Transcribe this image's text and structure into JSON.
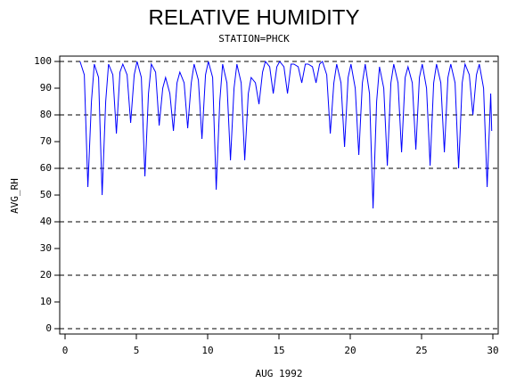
{
  "chart_data": {
    "type": "line",
    "title": "RELATIVE HUMIDITY",
    "subtitle": "STATION=PHCK",
    "xlabel": "AUG 1992",
    "ylabel": "AVG_RH",
    "color": "#0000ff",
    "x": [
      1.05,
      1.35,
      1.6,
      1.85,
      2.05,
      2.35,
      2.6,
      2.85,
      3.05,
      3.35,
      3.6,
      3.85,
      4.05,
      4.35,
      4.6,
      4.85,
      5.05,
      5.35,
      5.6,
      5.85,
      6.05,
      6.35,
      6.6,
      6.85,
      7.05,
      7.35,
      7.6,
      7.85,
      8.05,
      8.35,
      8.6,
      8.85,
      9.05,
      9.35,
      9.6,
      9.85,
      10.05,
      10.35,
      10.6,
      10.85,
      11.05,
      11.35,
      11.6,
      11.85,
      12.05,
      12.35,
      12.6,
      12.85,
      13.05,
      13.35,
      13.6,
      13.85,
      14.05,
      14.35,
      14.6,
      14.85,
      15.05,
      15.35,
      15.6,
      15.85,
      16.05,
      16.35,
      16.6,
      16.85,
      17.05,
      17.35,
      17.6,
      17.85,
      18.05,
      18.35,
      18.6,
      18.85,
      19.05,
      19.35,
      19.6,
      19.85,
      20.05,
      20.35,
      20.6,
      20.85,
      21.05,
      21.35,
      21.6,
      21.85,
      22.05,
      22.35,
      22.6,
      22.85,
      23.05,
      23.35,
      23.6,
      23.85,
      24.05,
      24.35,
      24.6,
      24.85,
      25.05,
      25.35,
      25.6,
      25.85,
      26.05,
      26.35,
      26.6,
      26.85,
      27.05,
      27.35,
      27.6,
      27.85,
      28.05,
      28.35,
      28.6,
      28.85,
      29.05,
      29.35,
      29.6,
      29.85,
      29.92
    ],
    "values": [
      100,
      95,
      53,
      85,
      99,
      94,
      50,
      85,
      99,
      95,
      73,
      96,
      99,
      95,
      77,
      95,
      100,
      94,
      57,
      88,
      99,
      96,
      76,
      90,
      94,
      88,
      74,
      92,
      96,
      92,
      75,
      92,
      99,
      93,
      71,
      95,
      100,
      94,
      52,
      85,
      99,
      92,
      63,
      90,
      99,
      92,
      63,
      88,
      94,
      92,
      84,
      96,
      100,
      98,
      88,
      98,
      100,
      98,
      88,
      99,
      99,
      98,
      92,
      99,
      99,
      98,
      92,
      99,
      100,
      95,
      73,
      92,
      99,
      92,
      68,
      94,
      99,
      90,
      65,
      92,
      99,
      88,
      45,
      85,
      98,
      90,
      61,
      92,
      99,
      92,
      66,
      94,
      98,
      92,
      67,
      94,
      99,
      90,
      61,
      92,
      99,
      92,
      66,
      94,
      99,
      92,
      60,
      92,
      99,
      95,
      80,
      95,
      99,
      90,
      53,
      88,
      74
    ],
    "xlim": [
      0,
      30
    ],
    "xticks": [
      0,
      5,
      10,
      15,
      20,
      25,
      30
    ],
    "ylim": [
      0,
      100
    ],
    "yticks": [
      0,
      10,
      20,
      30,
      40,
      50,
      60,
      70,
      80,
      90,
      100
    ],
    "ygrid": [
      0,
      20,
      40,
      60,
      80,
      100
    ]
  }
}
